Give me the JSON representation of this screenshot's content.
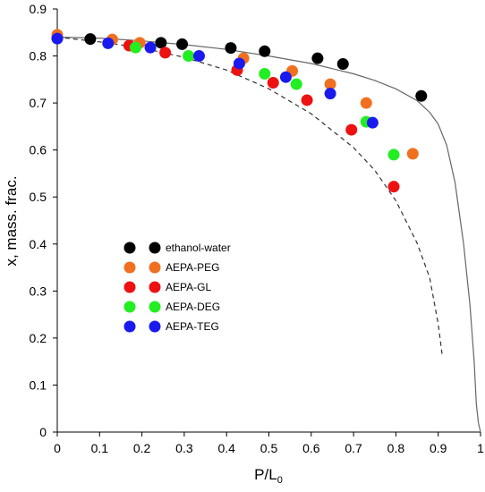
{
  "chart_data": {
    "type": "scatter",
    "xlabel": "P/L",
    "xlabel_subscript": "0",
    "ylabel": "x, mass. frac.",
    "xlim": [
      0,
      1
    ],
    "ylim": [
      0,
      0.9
    ],
    "x_ticks": [
      "0",
      "0.1",
      "0.2",
      "0.3",
      "0.4",
      "0.5",
      "0.6",
      "0.7",
      "0.8",
      "0.9",
      "1"
    ],
    "y_ticks": [
      "0",
      "0.1",
      "0.2",
      "0.3",
      "0.4",
      "0.5",
      "0.6",
      "0.7",
      "0.8",
      "0.9"
    ],
    "grid": false,
    "legend_position": "center-left",
    "series": [
      {
        "name": "ethanol-water",
        "color": "#000000",
        "points": [
          [
            0.0,
            0.838
          ],
          [
            0.078,
            0.836
          ],
          [
            0.245,
            0.828
          ],
          [
            0.295,
            0.825
          ],
          [
            0.41,
            0.817
          ],
          [
            0.49,
            0.81
          ],
          [
            0.615,
            0.795
          ],
          [
            0.675,
            0.783
          ],
          [
            0.86,
            0.715
          ]
        ]
      },
      {
        "name": "AEPA-PEG",
        "color": "#f07020",
        "points": [
          [
            0.0,
            0.845
          ],
          [
            0.13,
            0.835
          ],
          [
            0.195,
            0.828
          ],
          [
            0.44,
            0.795
          ],
          [
            0.555,
            0.768
          ],
          [
            0.645,
            0.74
          ],
          [
            0.73,
            0.7
          ],
          [
            0.84,
            0.592
          ]
        ]
      },
      {
        "name": "AEPA-GL",
        "color": "#ee1111",
        "points": [
          [
            0.17,
            0.822
          ],
          [
            0.255,
            0.807
          ],
          [
            0.425,
            0.77
          ],
          [
            0.51,
            0.743
          ],
          [
            0.59,
            0.706
          ],
          [
            0.695,
            0.643
          ],
          [
            0.795,
            0.522
          ]
        ]
      },
      {
        "name": "AEPA-DEG",
        "color": "#22ee22",
        "points": [
          [
            0.185,
            0.818
          ],
          [
            0.31,
            0.8
          ],
          [
            0.49,
            0.762
          ],
          [
            0.565,
            0.74
          ],
          [
            0.73,
            0.66
          ],
          [
            0.795,
            0.59
          ]
        ]
      },
      {
        "name": "AEPA-TEG",
        "color": "#1a1aee",
        "points": [
          [
            0.0,
            0.837
          ],
          [
            0.12,
            0.827
          ],
          [
            0.22,
            0.818
          ],
          [
            0.335,
            0.8
          ],
          [
            0.43,
            0.784
          ],
          [
            0.54,
            0.755
          ],
          [
            0.645,
            0.72
          ],
          [
            0.745,
            0.658
          ]
        ]
      }
    ],
    "curves": [
      {
        "style": "solid",
        "color": "#666666",
        "points": [
          [
            0,
            0.84
          ],
          [
            0.1,
            0.838
          ],
          [
            0.2,
            0.832
          ],
          [
            0.3,
            0.824
          ],
          [
            0.4,
            0.814
          ],
          [
            0.5,
            0.8
          ],
          [
            0.6,
            0.784
          ],
          [
            0.7,
            0.762
          ],
          [
            0.75,
            0.748
          ],
          [
            0.8,
            0.73
          ],
          [
            0.85,
            0.705
          ],
          [
            0.88,
            0.68
          ],
          [
            0.9,
            0.655
          ],
          [
            0.92,
            0.61
          ],
          [
            0.94,
            0.53
          ],
          [
            0.96,
            0.4
          ],
          [
            0.975,
            0.27
          ],
          [
            0.985,
            0.15
          ],
          [
            0.99,
            0.06
          ],
          [
            0.995,
            0.02
          ],
          [
            1.0,
            0.0
          ]
        ]
      },
      {
        "style": "dashed",
        "color": "#333333",
        "points": [
          [
            0,
            0.84
          ],
          [
            0.1,
            0.83
          ],
          [
            0.2,
            0.817
          ],
          [
            0.3,
            0.797
          ],
          [
            0.4,
            0.77
          ],
          [
            0.5,
            0.73
          ],
          [
            0.6,
            0.677
          ],
          [
            0.7,
            0.605
          ],
          [
            0.75,
            0.557
          ],
          [
            0.8,
            0.492
          ],
          [
            0.85,
            0.402
          ],
          [
            0.88,
            0.328
          ],
          [
            0.9,
            0.23
          ],
          [
            0.91,
            0.16
          ]
        ]
      }
    ]
  }
}
